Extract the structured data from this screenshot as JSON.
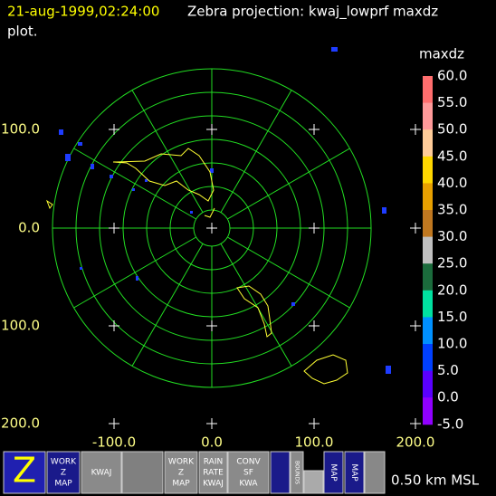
{
  "header": {
    "timestamp": "21-aug-1999,02:24:00",
    "title": "Zebra projection: kwaj_lowprf maxdz",
    "title_cont": "plot."
  },
  "plot": {
    "y_labels": [
      "100.0",
      "0.0",
      "100.0",
      "200.0"
    ],
    "x_labels": [
      "-100.0",
      "0.0",
      "100.0",
      "200.0"
    ]
  },
  "colorbar": {
    "title": "maxdz",
    "labels": [
      "60.0",
      "55.0",
      "50.0",
      "45.0",
      "40.0",
      "35.0",
      "30.0",
      "25.0",
      "20.0",
      "15.0",
      "10.0",
      "5.0",
      "0.0",
      "-5.0"
    ],
    "colors": [
      "#ff6e6e",
      "#ff9a9a",
      "#ffcc99",
      "#ffd700",
      "#e8a000",
      "#c07820",
      "#c0c0c0",
      "#1b6b3c",
      "#00e0a0",
      "#0090ff",
      "#0040ff",
      "#5a00ff",
      "#9000ff"
    ]
  },
  "icons": [
    {
      "lines": [
        "Z"
      ]
    },
    {
      "lines": [
        "WORK",
        "Z",
        "MAP"
      ]
    },
    {
      "lines": [
        "KWAJ"
      ]
    },
    {
      "lines": [
        "WORK",
        "Z",
        "MAP"
      ]
    },
    {
      "lines": [
        "RAIN",
        "RATE",
        "KWAJ"
      ]
    },
    {
      "lines": [
        "CONV",
        "SF",
        "KWA"
      ]
    },
    {
      "lines": [
        "BOUNDS"
      ]
    },
    {
      "lines": [
        "MAP"
      ]
    },
    {
      "lines": [
        "MAP"
      ]
    }
  ],
  "status": "0.50 km MSL"
}
